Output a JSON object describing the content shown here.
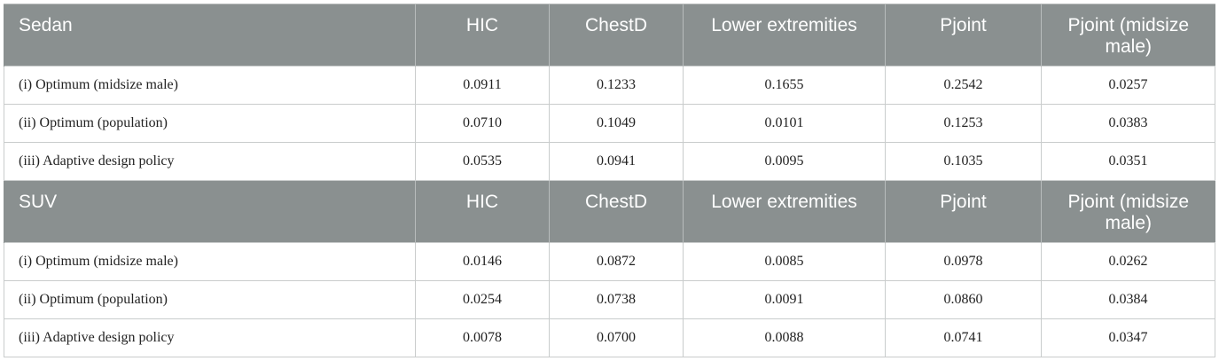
{
  "sections": [
    {
      "name": "Sedan",
      "headers": [
        "HIC",
        "ChestD",
        "Lower extremities",
        "Pjoint",
        "Pjoint (midsize male)"
      ],
      "rows": [
        {
          "label": "(i) Optimum (midsize male)",
          "values": [
            "0.0911",
            "0.1233",
            "0.1655",
            "0.2542",
            "0.0257"
          ]
        },
        {
          "label": "(ii) Optimum (population)",
          "values": [
            "0.0710",
            "0.1049",
            "0.0101",
            "0.1253",
            "0.0383"
          ]
        },
        {
          "label": "(iii) Adaptive design policy",
          "values": [
            "0.0535",
            "0.0941",
            "0.0095",
            "0.1035",
            "0.0351"
          ]
        }
      ]
    },
    {
      "name": "SUV",
      "headers": [
        "HIC",
        "ChestD",
        "Lower extremities",
        "Pjoint",
        "Pjoint (midsize male)"
      ],
      "rows": [
        {
          "label": "(i) Optimum (midsize male)",
          "values": [
            "0.0146",
            "0.0872",
            "0.0085",
            "0.0978",
            "0.0262"
          ]
        },
        {
          "label": "(ii) Optimum (population)",
          "values": [
            "0.0254",
            "0.0738",
            "0.0091",
            "0.0860",
            "0.0384"
          ]
        },
        {
          "label": "(iii) Adaptive design policy",
          "values": [
            "0.0078",
            "0.0700",
            "0.0088",
            "0.0741",
            "0.0347"
          ]
        }
      ]
    }
  ]
}
